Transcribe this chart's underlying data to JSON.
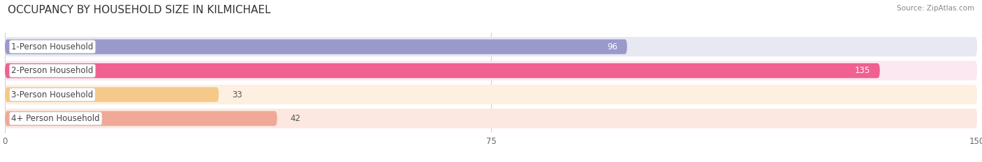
{
  "title": "OCCUPANCY BY HOUSEHOLD SIZE IN KILMICHAEL",
  "source": "Source: ZipAtlas.com",
  "categories": [
    "1-Person Household",
    "2-Person Household",
    "3-Person Household",
    "4+ Person Household"
  ],
  "values": [
    96,
    135,
    33,
    42
  ],
  "bar_colors": [
    "#9999cc",
    "#f06090",
    "#f5c98a",
    "#f0a898"
  ],
  "bar_bg_colors": [
    "#e8e8f2",
    "#fce8f0",
    "#fdf0e0",
    "#fce8e0"
  ],
  "xlim": [
    0,
    150
  ],
  "xticks": [
    0,
    75,
    150
  ],
  "title_fontsize": 11,
  "label_fontsize": 8.5,
  "value_fontsize": 8.5,
  "bg_color": "#ffffff",
  "bar_height": 0.62,
  "bg_bar_height": 0.82,
  "figsize": [
    14.06,
    2.33
  ],
  "dpi": 100
}
